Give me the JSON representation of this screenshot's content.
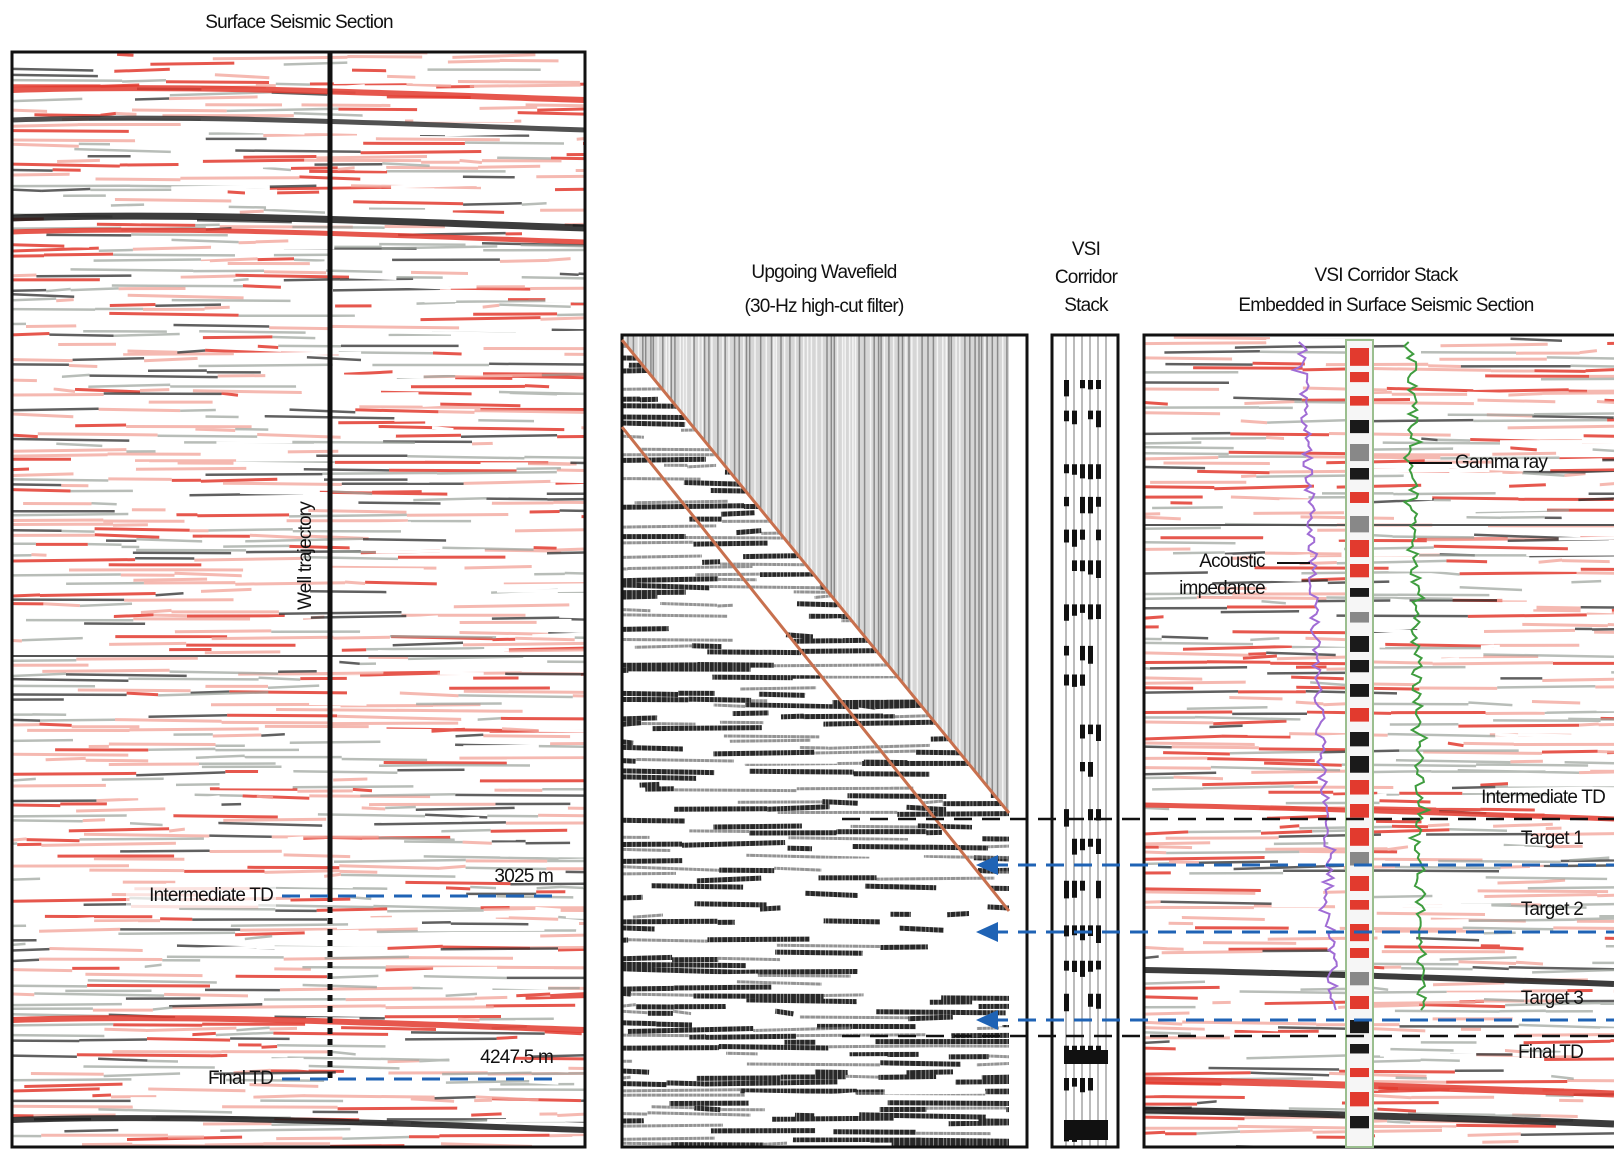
{
  "surface_section": {
    "title": "Surface Seismic Section",
    "well_label": "Well trajectory",
    "markers": [
      {
        "label": "Intermediate TD",
        "depth": "3025 m"
      },
      {
        "label": "Final TD",
        "depth": "4247.5 m"
      }
    ]
  },
  "upgoing_wavefield": {
    "title_lines": [
      "Upgoing Wavefield",
      "(30-Hz high-cut filter)"
    ]
  },
  "corridor_stack": {
    "title_lines": [
      "VSI",
      "Corridor",
      "Stack"
    ]
  },
  "embedded_section": {
    "title_lines": [
      "VSI Corridor Stack",
      "Embedded in Surface Seismic Section"
    ],
    "curves": [
      {
        "label_lines": [
          "Gamma ray"
        ]
      },
      {
        "label_lines": [
          "Acoustic",
          "impedance"
        ]
      }
    ],
    "horizons": [
      "Intermediate TD",
      "Target 1",
      "Target 2",
      "Target 3",
      "Final TD"
    ]
  }
}
